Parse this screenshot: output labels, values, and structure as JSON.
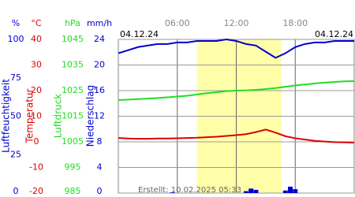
{
  "chart_data": {
    "type": "line",
    "xlim": [
      0,
      24
    ],
    "xticks": [
      {
        "value": 6,
        "label": "06:00"
      },
      {
        "value": 12,
        "label": "12:00"
      },
      {
        "value": 18,
        "label": "18:00"
      }
    ],
    "date_start": "04.12.24",
    "date_end": "04.12.24",
    "daylight": [
      8,
      16.6
    ],
    "footer": "Erstellt: 10.02.2025 05:33",
    "grid": true,
    "x": [
      0,
      1,
      2,
      3,
      4,
      5,
      6,
      7,
      8,
      9,
      10,
      11,
      12,
      13,
      14,
      15,
      16,
      17,
      18,
      19,
      20,
      21,
      22,
      23,
      24
    ],
    "series": [
      {
        "name": "Luftfeuchtigkeit",
        "unit": "%",
        "color": "#0000cc",
        "type": "line",
        "ylim": [
          0,
          100
        ],
        "yticks": [
          0,
          25,
          50,
          75,
          100
        ],
        "values": [
          91,
          93,
          95,
          96,
          97,
          97,
          98,
          98,
          99,
          99,
          99,
          100,
          99,
          97,
          96,
          92,
          88,
          91,
          95,
          97,
          98,
          98,
          99,
          99,
          99
        ]
      },
      {
        "name": "Temperatur",
        "unit": "°C",
        "color": "#dd0000",
        "type": "line",
        "ylim": [
          -20,
          40
        ],
        "yticks": [
          -20,
          -10,
          0,
          10,
          20,
          30,
          40
        ],
        "values": [
          1.5,
          1.3,
          1.2,
          1.2,
          1.3,
          1.3,
          1.4,
          1.5,
          1.6,
          1.8,
          2.0,
          2.3,
          2.6,
          3.0,
          3.8,
          4.8,
          3.6,
          2.2,
          1.4,
          0.9,
          0.4,
          0.1,
          -0.1,
          -0.2,
          -0.3
        ]
      },
      {
        "name": "Luftdruck",
        "unit": "hPa",
        "color": "#22dd22",
        "type": "line",
        "ylim": [
          985,
          1045
        ],
        "yticks": [
          985,
          995,
          1005,
          1015,
          1025,
          1035,
          1045
        ],
        "values": [
          1021.3,
          1021.5,
          1021.7,
          1021.9,
          1022.1,
          1022.4,
          1022.7,
          1023.0,
          1023.5,
          1024.0,
          1024.4,
          1024.8,
          1025.0,
          1025.1,
          1025.3,
          1025.6,
          1026.0,
          1026.5,
          1027.0,
          1027.4,
          1027.8,
          1028.1,
          1028.4,
          1028.6,
          1028.7
        ]
      },
      {
        "name": "Niederschlag",
        "unit": "mm/h",
        "color": "#0000cc",
        "type": "bar",
        "ylim": [
          0,
          24
        ],
        "yticks": [
          0,
          4,
          8,
          12,
          16,
          20,
          24
        ],
        "x": [
          5.5,
          13.0,
          13.5,
          14.0,
          17.0,
          17.5,
          18.0
        ],
        "values": [
          0.1,
          0.3,
          0.7,
          0.5,
          0.4,
          1.0,
          0.6
        ]
      }
    ]
  }
}
